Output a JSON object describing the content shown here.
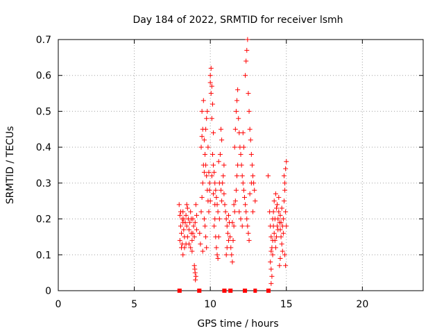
{
  "chart_data": {
    "type": "scatter",
    "title": "Day 184 of 2022, SRMTID for receiver lsmh",
    "xlabel": "GPS time / hours",
    "ylabel": "SRMTID / TECUs",
    "xlim": [
      0,
      24
    ],
    "ylim": [
      0,
      0.7
    ],
    "xticks": [
      0,
      5,
      10,
      15,
      20
    ],
    "yticks": [
      0,
      0.1,
      0.2,
      0.3,
      0.4,
      0.5,
      0.6,
      0.7
    ],
    "xtick_labels": [
      "0",
      "5",
      "10",
      "15",
      "20"
    ],
    "ytick_labels": [
      "0",
      "0.1",
      "0.2",
      "0.3",
      "0.4",
      "0.5",
      "0.6",
      "0.7"
    ],
    "grid": true,
    "marker": "+",
    "series": [
      {
        "name": "SRMTID",
        "color": "#ff0000",
        "points": [
          [
            7.95,
            0.24
          ],
          [
            8.0,
            0.21
          ],
          [
            8.05,
            0.18
          ],
          [
            8.1,
            0.16
          ],
          [
            8.0,
            0.14
          ],
          [
            8.1,
            0.12
          ],
          [
            8.15,
            0.2
          ],
          [
            8.2,
            0.22
          ],
          [
            8.25,
            0.17
          ],
          [
            8.3,
            0.15
          ],
          [
            8.35,
            0.19
          ],
          [
            8.4,
            0.21
          ],
          [
            8.45,
            0.18
          ],
          [
            8.3,
            0.12
          ],
          [
            8.2,
            0.1
          ],
          [
            8.5,
            0.23
          ],
          [
            8.55,
            0.2
          ],
          [
            8.6,
            0.17
          ],
          [
            8.65,
            0.19
          ],
          [
            8.7,
            0.22
          ],
          [
            8.75,
            0.16
          ],
          [
            8.8,
            0.14
          ],
          [
            8.85,
            0.2
          ],
          [
            8.9,
            0.18
          ],
          [
            8.95,
            0.15
          ],
          [
            8.7,
            0.12
          ],
          [
            8.8,
            0.11
          ],
          [
            8.6,
            0.13
          ],
          [
            8.5,
            0.15
          ],
          [
            8.4,
            0.13
          ],
          [
            9.0,
            0.19
          ],
          [
            9.05,
            0.24
          ],
          [
            9.1,
            0.21
          ],
          [
            8.95,
            0.07
          ],
          [
            9.0,
            0.05
          ],
          [
            9.05,
            0.04
          ],
          [
            8.98,
            0.06
          ],
          [
            9.02,
            0.03
          ],
          [
            8.2,
            0.19
          ],
          [
            8.05,
            0.22
          ],
          [
            8.45,
            0.24
          ],
          [
            8.75,
            0.2
          ],
          [
            8.85,
            0.16
          ],
          [
            9.1,
            0.17
          ],
          [
            8.15,
            0.13
          ],
          [
            8.25,
            0.2
          ],
          [
            9.3,
            0.16
          ],
          [
            9.35,
            0.13
          ],
          [
            9.4,
            0.22
          ],
          [
            9.45,
            0.26
          ],
          [
            9.5,
            0.3
          ],
          [
            9.55,
            0.35
          ],
          [
            9.6,
            0.33
          ],
          [
            9.5,
            0.45
          ],
          [
            9.45,
            0.5
          ],
          [
            9.55,
            0.53
          ],
          [
            9.6,
            0.42
          ],
          [
            9.65,
            0.38
          ],
          [
            9.7,
            0.45
          ],
          [
            9.75,
            0.48
          ],
          [
            9.8,
            0.5
          ],
          [
            9.7,
            0.35
          ],
          [
            9.75,
            0.32
          ],
          [
            9.8,
            0.28
          ],
          [
            9.85,
            0.25
          ],
          [
            9.6,
            0.2
          ],
          [
            9.65,
            0.18
          ],
          [
            9.7,
            0.15
          ],
          [
            9.75,
            0.12
          ],
          [
            9.5,
            0.11
          ],
          [
            9.9,
            0.22
          ],
          [
            9.95,
            0.3
          ],
          [
            10.0,
            0.6
          ],
          [
            10.05,
            0.62
          ],
          [
            10.0,
            0.58
          ],
          [
            10.1,
            0.57
          ],
          [
            10.05,
            0.55
          ],
          [
            10.15,
            0.52
          ],
          [
            10.1,
            0.48
          ],
          [
            10.2,
            0.44
          ],
          [
            10.15,
            0.38
          ],
          [
            10.2,
            0.35
          ],
          [
            10.25,
            0.33
          ],
          [
            10.3,
            0.3
          ],
          [
            10.35,
            0.28
          ],
          [
            10.4,
            0.26
          ],
          [
            10.45,
            0.24
          ],
          [
            10.5,
            0.22
          ],
          [
            10.3,
            0.2
          ],
          [
            10.25,
            0.18
          ],
          [
            10.35,
            0.15
          ],
          [
            10.4,
            0.12
          ],
          [
            10.45,
            0.1
          ],
          [
            10.5,
            0.09
          ],
          [
            10.55,
            0.15
          ],
          [
            10.6,
            0.2
          ],
          [
            10.0,
            0.25
          ],
          [
            9.95,
            0.28
          ],
          [
            9.9,
            0.33
          ],
          [
            10.1,
            0.32
          ],
          [
            10.2,
            0.27
          ],
          [
            10.3,
            0.24
          ],
          [
            10.6,
            0.3
          ],
          [
            10.7,
            0.28
          ],
          [
            10.75,
            0.25
          ],
          [
            10.8,
            0.3
          ],
          [
            10.85,
            0.32
          ],
          [
            10.9,
            0.27
          ],
          [
            10.95,
            0.24
          ],
          [
            11.0,
            0.22
          ],
          [
            11.05,
            0.2
          ],
          [
            11.1,
            0.18
          ],
          [
            11.15,
            0.16
          ],
          [
            11.2,
            0.14
          ],
          [
            11.1,
            0.12
          ],
          [
            11.05,
            0.1
          ],
          [
            11.2,
            0.21
          ],
          [
            11.25,
            0.19
          ],
          [
            10.7,
            0.45
          ],
          [
            10.75,
            0.42
          ],
          [
            10.65,
            0.38
          ],
          [
            10.9,
            0.35
          ],
          [
            9.85,
            0.4
          ],
          [
            9.4,
            0.4
          ],
          [
            9.45,
            0.43
          ],
          [
            10.55,
            0.36
          ],
          [
            11.3,
            0.15
          ],
          [
            11.35,
            0.12
          ],
          [
            11.4,
            0.1
          ],
          [
            11.45,
            0.08
          ],
          [
            11.5,
            0.14
          ],
          [
            11.55,
            0.18
          ],
          [
            11.6,
            0.22
          ],
          [
            11.65,
            0.25
          ],
          [
            11.7,
            0.28
          ],
          [
            11.75,
            0.32
          ],
          [
            11.8,
            0.35
          ],
          [
            11.6,
            0.4
          ],
          [
            11.65,
            0.45
          ],
          [
            11.7,
            0.5
          ],
          [
            11.75,
            0.53
          ],
          [
            11.8,
            0.56
          ],
          [
            11.85,
            0.48
          ],
          [
            11.9,
            0.44
          ],
          [
            11.95,
            0.4
          ],
          [
            12.0,
            0.38
          ],
          [
            12.05,
            0.35
          ],
          [
            12.1,
            0.32
          ],
          [
            12.15,
            0.3
          ],
          [
            12.2,
            0.28
          ],
          [
            12.25,
            0.26
          ],
          [
            12.3,
            0.24
          ],
          [
            12.35,
            0.22
          ],
          [
            12.4,
            0.2
          ],
          [
            12.45,
            0.18
          ],
          [
            12.5,
            0.16
          ],
          [
            12.55,
            0.14
          ],
          [
            12.3,
            0.6
          ],
          [
            12.35,
            0.64
          ],
          [
            12.4,
            0.67
          ],
          [
            12.45,
            0.7
          ],
          [
            12.5,
            0.55
          ],
          [
            12.55,
            0.5
          ],
          [
            12.6,
            0.45
          ],
          [
            12.65,
            0.42
          ],
          [
            12.7,
            0.38
          ],
          [
            12.75,
            0.35
          ],
          [
            12.8,
            0.32
          ],
          [
            12.85,
            0.3
          ],
          [
            12.9,
            0.28
          ],
          [
            12.95,
            0.25
          ],
          [
            11.9,
            0.22
          ],
          [
            12.0,
            0.2
          ],
          [
            12.1,
            0.18
          ],
          [
            11.55,
            0.24
          ],
          [
            11.45,
            0.19
          ],
          [
            12.6,
            0.27
          ],
          [
            12.7,
            0.3
          ],
          [
            12.8,
            0.22
          ],
          [
            12.2,
            0.4
          ],
          [
            12.15,
            0.44
          ],
          [
            13.8,
            0.32
          ],
          [
            13.9,
            0.22
          ],
          [
            13.95,
            0.18
          ],
          [
            14.0,
            0.15
          ],
          [
            14.05,
            0.12
          ],
          [
            14.1,
            0.1
          ],
          [
            13.95,
            0.08
          ],
          [
            14.0,
            0.06
          ],
          [
            14.05,
            0.04
          ],
          [
            14.0,
            0.02
          ],
          [
            14.1,
            0.2
          ],
          [
            14.15,
            0.18
          ],
          [
            14.2,
            0.16
          ],
          [
            14.25,
            0.14
          ],
          [
            14.3,
            0.12
          ],
          [
            14.35,
            0.15
          ],
          [
            14.4,
            0.18
          ],
          [
            14.45,
            0.2
          ],
          [
            14.5,
            0.22
          ],
          [
            14.55,
            0.19
          ],
          [
            14.6,
            0.17
          ],
          [
            14.65,
            0.15
          ],
          [
            14.7,
            0.13
          ],
          [
            14.75,
            0.11
          ],
          [
            14.6,
            0.09
          ],
          [
            14.55,
            0.07
          ],
          [
            14.8,
            0.2
          ],
          [
            14.85,
            0.25
          ],
          [
            14.9,
            0.3
          ],
          [
            14.95,
            0.34
          ],
          [
            15.0,
            0.36
          ],
          [
            14.85,
            0.32
          ],
          [
            14.9,
            0.28
          ],
          [
            14.95,
            0.22
          ],
          [
            15.0,
            0.18
          ],
          [
            14.9,
            0.1
          ],
          [
            14.95,
            0.07
          ],
          [
            14.2,
            0.25
          ],
          [
            14.3,
            0.27
          ],
          [
            14.4,
            0.24
          ],
          [
            14.5,
            0.26
          ],
          [
            14.15,
            0.22
          ],
          [
            14.25,
            0.2
          ],
          [
            14.35,
            0.23
          ],
          [
            14.45,
            0.17
          ],
          [
            14.6,
            0.21
          ],
          [
            14.65,
            0.19
          ],
          [
            14.7,
            0.23
          ],
          [
            14.75,
            0.18
          ],
          [
            14.8,
            0.16
          ],
          [
            14.1,
            0.14
          ],
          [
            14.0,
            0.11
          ]
        ],
        "zero_points": [
          7.95,
          8.0,
          9.25,
          9.3,
          10.9,
          10.95,
          11.3,
          11.35,
          12.25,
          12.3,
          12.95,
          13.8,
          13.85
        ]
      }
    ]
  }
}
